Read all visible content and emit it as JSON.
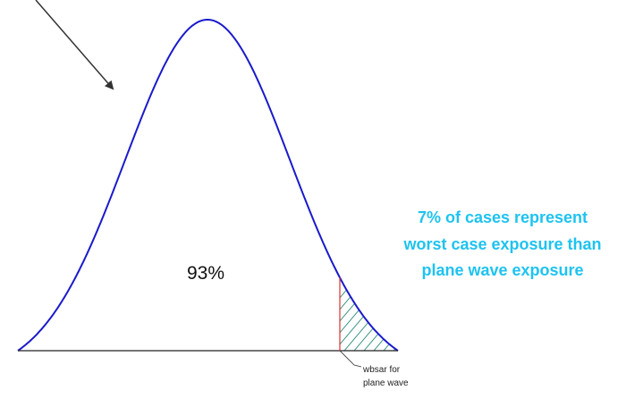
{
  "center_label": "93%",
  "annotation": {
    "lines": [
      "7% of cases represent",
      "worst case exposure than",
      "plane wave exposure"
    ]
  },
  "pointer_label": {
    "lines": [
      "wbsar for",
      "plane wave"
    ]
  }
}
